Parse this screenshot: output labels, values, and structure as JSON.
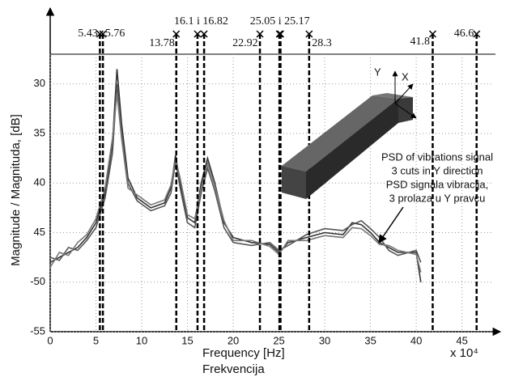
{
  "chart_data": {
    "type": "line",
    "y_label": "Magnitude / Magnituda, [dB]",
    "x_label": "Frequency  [Hz]",
    "x_label_2": "Frekvencija",
    "x_multiplier": "x 10⁴",
    "xlim": [
      0,
      47.6
    ],
    "ylim": [
      -55,
      -27
    ],
    "xticks": [
      0,
      5,
      10,
      15,
      20,
      25,
      30,
      35,
      40,
      45
    ],
    "yticks": [
      {
        "value": -30,
        "label": "30"
      },
      {
        "value": -35,
        "label": "35"
      },
      {
        "value": -40,
        "label": "40"
      },
      {
        "value": -45,
        "label": "45"
      },
      -50,
      -55
    ],
    "grid": true,
    "x": [
      0,
      1,
      2,
      3,
      4,
      5,
      6,
      6.8,
      7.3,
      7.8,
      8.5,
      9.5,
      11,
      12.5,
      13.2,
      13.7,
      14.2,
      15,
      15.8,
      16.5,
      17.2,
      18,
      19,
      20,
      22,
      24,
      25,
      26,
      28,
      30,
      32,
      33,
      34,
      35,
      36,
      37,
      38,
      40,
      40.5
    ],
    "series": [
      {
        "color": "#333333",
        "values": [
          -48,
          -47.5,
          -47,
          -46.5,
          -45.5,
          -44,
          -41,
          -36,
          -28.5,
          -34,
          -39.5,
          -41.5,
          -42.5,
          -42,
          -40.5,
          -37.2,
          -40,
          -43.5,
          -44,
          -40,
          -37.5,
          -40,
          -44,
          -45.5,
          -46,
          -46.2,
          -47,
          -46,
          -45.5,
          -45,
          -45.2,
          -44,
          -44.2,
          -45,
          -46,
          -46.5,
          -47,
          -47,
          -50
        ]
      },
      {
        "color": "#555555",
        "values": [
          -47.5,
          -47.8,
          -46.5,
          -46.8,
          -45.8,
          -44.5,
          -41.5,
          -37,
          -30,
          -35,
          -40,
          -41.8,
          -42.8,
          -42.3,
          -41,
          -37.8,
          -40.5,
          -44,
          -44.5,
          -41,
          -38.5,
          -40.8,
          -44.5,
          -46,
          -46.3,
          -46,
          -46.8,
          -46.3,
          -45.2,
          -44.6,
          -44.8,
          -44.2,
          -43.8,
          -44.6,
          -45.5,
          -46.8,
          -47.3,
          -46.8,
          -48
        ]
      },
      {
        "color": "#777777",
        "values": [
          -48.5,
          -47,
          -47.3,
          -46,
          -45.2,
          -43.6,
          -40.5,
          -35.5,
          -31,
          -35.5,
          -40.5,
          -41.2,
          -42.2,
          -41.7,
          -40.2,
          -37.6,
          -39.5,
          -43.2,
          -43.6,
          -40.5,
          -38,
          -40.3,
          -43.8,
          -45.8,
          -45.8,
          -46.4,
          -47.2,
          -45.8,
          -45.8,
          -45.3,
          -45.5,
          -44.5,
          -44.6,
          -45.3,
          -46.2,
          -46.3,
          -46.8,
          -47.2,
          -49
        ]
      }
    ],
    "cut_lines": [
      5.43,
      5.76,
      13.78,
      16.1,
      16.82,
      22.92,
      25.05,
      25.17,
      28.3,
      41.8,
      46.6
    ],
    "cut_labels": [
      "5.43",
      "5.76",
      "13.78",
      "16.1 i 16.82",
      "22.92",
      "25.05 i 25.17",
      "28.3",
      "41.8",
      "46.6"
    ],
    "annotation": [
      "PSD of vibrations signal",
      "3 cuts in Y direction",
      "PSD signala vibracija,",
      "3 prolaza u Y pravcu"
    ],
    "axis_y": "Y",
    "axis_x": "X"
  }
}
